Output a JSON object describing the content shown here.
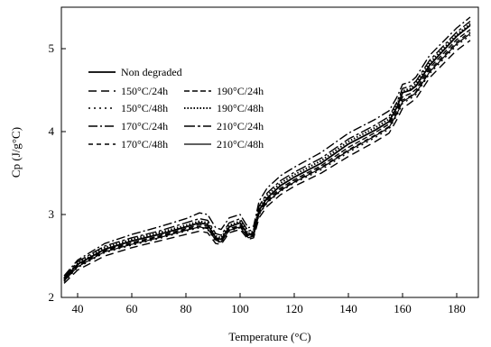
{
  "chart_data": {
    "type": "line",
    "title": "",
    "xlabel": "Temperature (°C)",
    "ylabel": "Cp (J/g°C)",
    "xlim": [
      34,
      188
    ],
    "ylim": [
      2,
      5.5
    ],
    "xticks": [
      40,
      60,
      80,
      100,
      120,
      140,
      160,
      180
    ],
    "yticks": [
      2,
      3,
      4,
      5
    ],
    "grid": false,
    "legend_position": "top-left",
    "series": [
      {
        "name": "Non degraded",
        "style": "solid",
        "width": 1.8,
        "x": [
          35,
          40,
          50,
          60,
          70,
          80,
          85,
          88,
          91,
          93,
          96,
          100,
          103,
          105,
          107,
          110,
          115,
          120,
          130,
          140,
          150,
          155,
          158,
          160,
          163,
          165,
          170,
          180,
          185
        ],
        "y": [
          2.22,
          2.4,
          2.58,
          2.68,
          2.76,
          2.85,
          2.9,
          2.88,
          2.72,
          2.7,
          2.85,
          2.9,
          2.75,
          2.78,
          3.05,
          3.2,
          3.35,
          3.45,
          3.62,
          3.85,
          4.02,
          4.12,
          4.3,
          4.47,
          4.5,
          4.55,
          4.8,
          5.15,
          5.28
        ]
      },
      {
        "name": "150°C/24h",
        "style": "dash",
        "width": 1.4,
        "x": [
          35,
          40,
          50,
          60,
          70,
          80,
          85,
          88,
          91,
          93,
          96,
          100,
          103,
          105,
          107,
          110,
          115,
          120,
          130,
          140,
          150,
          155,
          158,
          160,
          163,
          165,
          170,
          180,
          185
        ],
        "y": [
          2.17,
          2.33,
          2.5,
          2.6,
          2.68,
          2.76,
          2.8,
          2.78,
          2.65,
          2.64,
          2.78,
          2.82,
          2.7,
          2.72,
          2.96,
          3.1,
          3.24,
          3.34,
          3.5,
          3.7,
          3.88,
          3.98,
          4.15,
          4.28,
          4.35,
          4.4,
          4.65,
          4.98,
          5.1
        ]
      },
      {
        "name": "150°C/48h",
        "style": "dot-dash-short",
        "width": 1.4,
        "x": [
          35,
          40,
          50,
          60,
          70,
          80,
          85,
          88,
          91,
          93,
          96,
          100,
          103,
          105,
          107,
          110,
          115,
          120,
          130,
          140,
          150,
          155,
          158,
          160,
          163,
          165,
          170,
          180,
          185
        ],
        "y": [
          2.19,
          2.36,
          2.54,
          2.63,
          2.71,
          2.8,
          2.84,
          2.82,
          2.68,
          2.66,
          2.8,
          2.84,
          2.72,
          2.74,
          3.0,
          3.14,
          3.28,
          3.38,
          3.54,
          3.75,
          3.93,
          4.03,
          4.2,
          4.34,
          4.4,
          4.45,
          4.7,
          5.04,
          5.16
        ]
      },
      {
        "name": "170°C/24h",
        "style": "dash-dot",
        "width": 1.4,
        "x": [
          35,
          40,
          50,
          60,
          70,
          80,
          85,
          88,
          91,
          93,
          96,
          100,
          103,
          105,
          107,
          110,
          115,
          120,
          130,
          140,
          150,
          155,
          158,
          160,
          163,
          165,
          170,
          180,
          185
        ],
        "y": [
          2.26,
          2.45,
          2.65,
          2.76,
          2.85,
          2.95,
          3.02,
          3.0,
          2.84,
          2.82,
          2.96,
          3.0,
          2.84,
          2.86,
          3.16,
          3.32,
          3.47,
          3.57,
          3.75,
          3.98,
          4.15,
          4.25,
          4.42,
          4.57,
          4.6,
          4.66,
          4.92,
          5.25,
          5.38
        ]
      },
      {
        "name": "170°C/48h",
        "style": "dash-short",
        "width": 1.4,
        "x": [
          35,
          40,
          50,
          60,
          70,
          80,
          85,
          88,
          91,
          93,
          96,
          100,
          103,
          105,
          107,
          110,
          115,
          120,
          130,
          140,
          150,
          155,
          158,
          160,
          163,
          165,
          170,
          180,
          185
        ],
        "y": [
          2.2,
          2.38,
          2.56,
          2.65,
          2.73,
          2.82,
          2.86,
          2.84,
          2.7,
          2.68,
          2.82,
          2.86,
          2.73,
          2.75,
          3.02,
          3.16,
          3.3,
          3.4,
          3.57,
          3.78,
          3.96,
          4.06,
          4.23,
          4.38,
          4.43,
          4.48,
          4.74,
          5.08,
          5.2
        ]
      },
      {
        "name": "190°C/24h",
        "style": "dash-medium",
        "width": 1.4,
        "x": [
          35,
          40,
          50,
          60,
          70,
          80,
          85,
          88,
          91,
          93,
          96,
          100,
          103,
          105,
          107,
          110,
          115,
          120,
          130,
          140,
          150,
          155,
          158,
          160,
          163,
          165,
          170,
          180,
          185
        ],
        "y": [
          2.21,
          2.39,
          2.57,
          2.66,
          2.74,
          2.83,
          2.88,
          2.86,
          2.71,
          2.69,
          2.83,
          2.87,
          2.74,
          2.76,
          3.04,
          3.18,
          3.32,
          3.42,
          3.59,
          3.81,
          3.99,
          4.09,
          4.26,
          4.42,
          4.46,
          4.51,
          4.77,
          5.11,
          5.23
        ]
      },
      {
        "name": "190°C/48h",
        "style": "dotted",
        "width": 2.0,
        "x": [
          35,
          40,
          50,
          60,
          70,
          80,
          85,
          88,
          91,
          93,
          96,
          100,
          103,
          105,
          107,
          110,
          115,
          120,
          130,
          140,
          150,
          155,
          158,
          160,
          163,
          165,
          170,
          180,
          185
        ],
        "y": [
          2.23,
          2.41,
          2.6,
          2.7,
          2.78,
          2.87,
          2.92,
          2.9,
          2.74,
          2.72,
          2.87,
          2.92,
          2.77,
          2.8,
          3.08,
          3.23,
          3.38,
          3.48,
          3.65,
          3.88,
          4.05,
          4.15,
          4.33,
          4.49,
          4.52,
          4.58,
          4.83,
          5.17,
          5.3
        ]
      },
      {
        "name": "210°C/24h",
        "style": "dash-dot-long",
        "width": 1.4,
        "x": [
          35,
          40,
          50,
          60,
          70,
          80,
          85,
          88,
          91,
          93,
          96,
          100,
          103,
          105,
          107,
          110,
          115,
          120,
          130,
          140,
          150,
          155,
          158,
          160,
          163,
          165,
          170,
          180,
          185
        ],
        "y": [
          2.24,
          2.43,
          2.62,
          2.72,
          2.8,
          2.9,
          2.95,
          2.93,
          2.77,
          2.75,
          2.9,
          2.95,
          2.8,
          2.82,
          3.1,
          3.26,
          3.41,
          3.51,
          3.68,
          3.91,
          4.08,
          4.18,
          4.36,
          4.52,
          4.55,
          4.61,
          4.86,
          5.2,
          5.33
        ]
      },
      {
        "name": "210°C/48h",
        "style": "solid",
        "width": 1.2,
        "x": [
          35,
          40,
          50,
          60,
          70,
          80,
          85,
          88,
          91,
          93,
          96,
          100,
          103,
          105,
          107,
          110,
          115,
          120,
          130,
          140,
          150,
          155,
          158,
          160,
          163,
          165,
          170,
          180,
          185
        ],
        "y": [
          2.2,
          2.37,
          2.55,
          2.64,
          2.72,
          2.81,
          2.85,
          2.83,
          2.69,
          2.67,
          2.81,
          2.85,
          2.72,
          2.74,
          3.01,
          3.15,
          3.29,
          3.39,
          3.56,
          3.77,
          3.95,
          4.05,
          4.22,
          4.36,
          4.42,
          4.47,
          4.72,
          5.06,
          5.18
        ]
      }
    ]
  }
}
